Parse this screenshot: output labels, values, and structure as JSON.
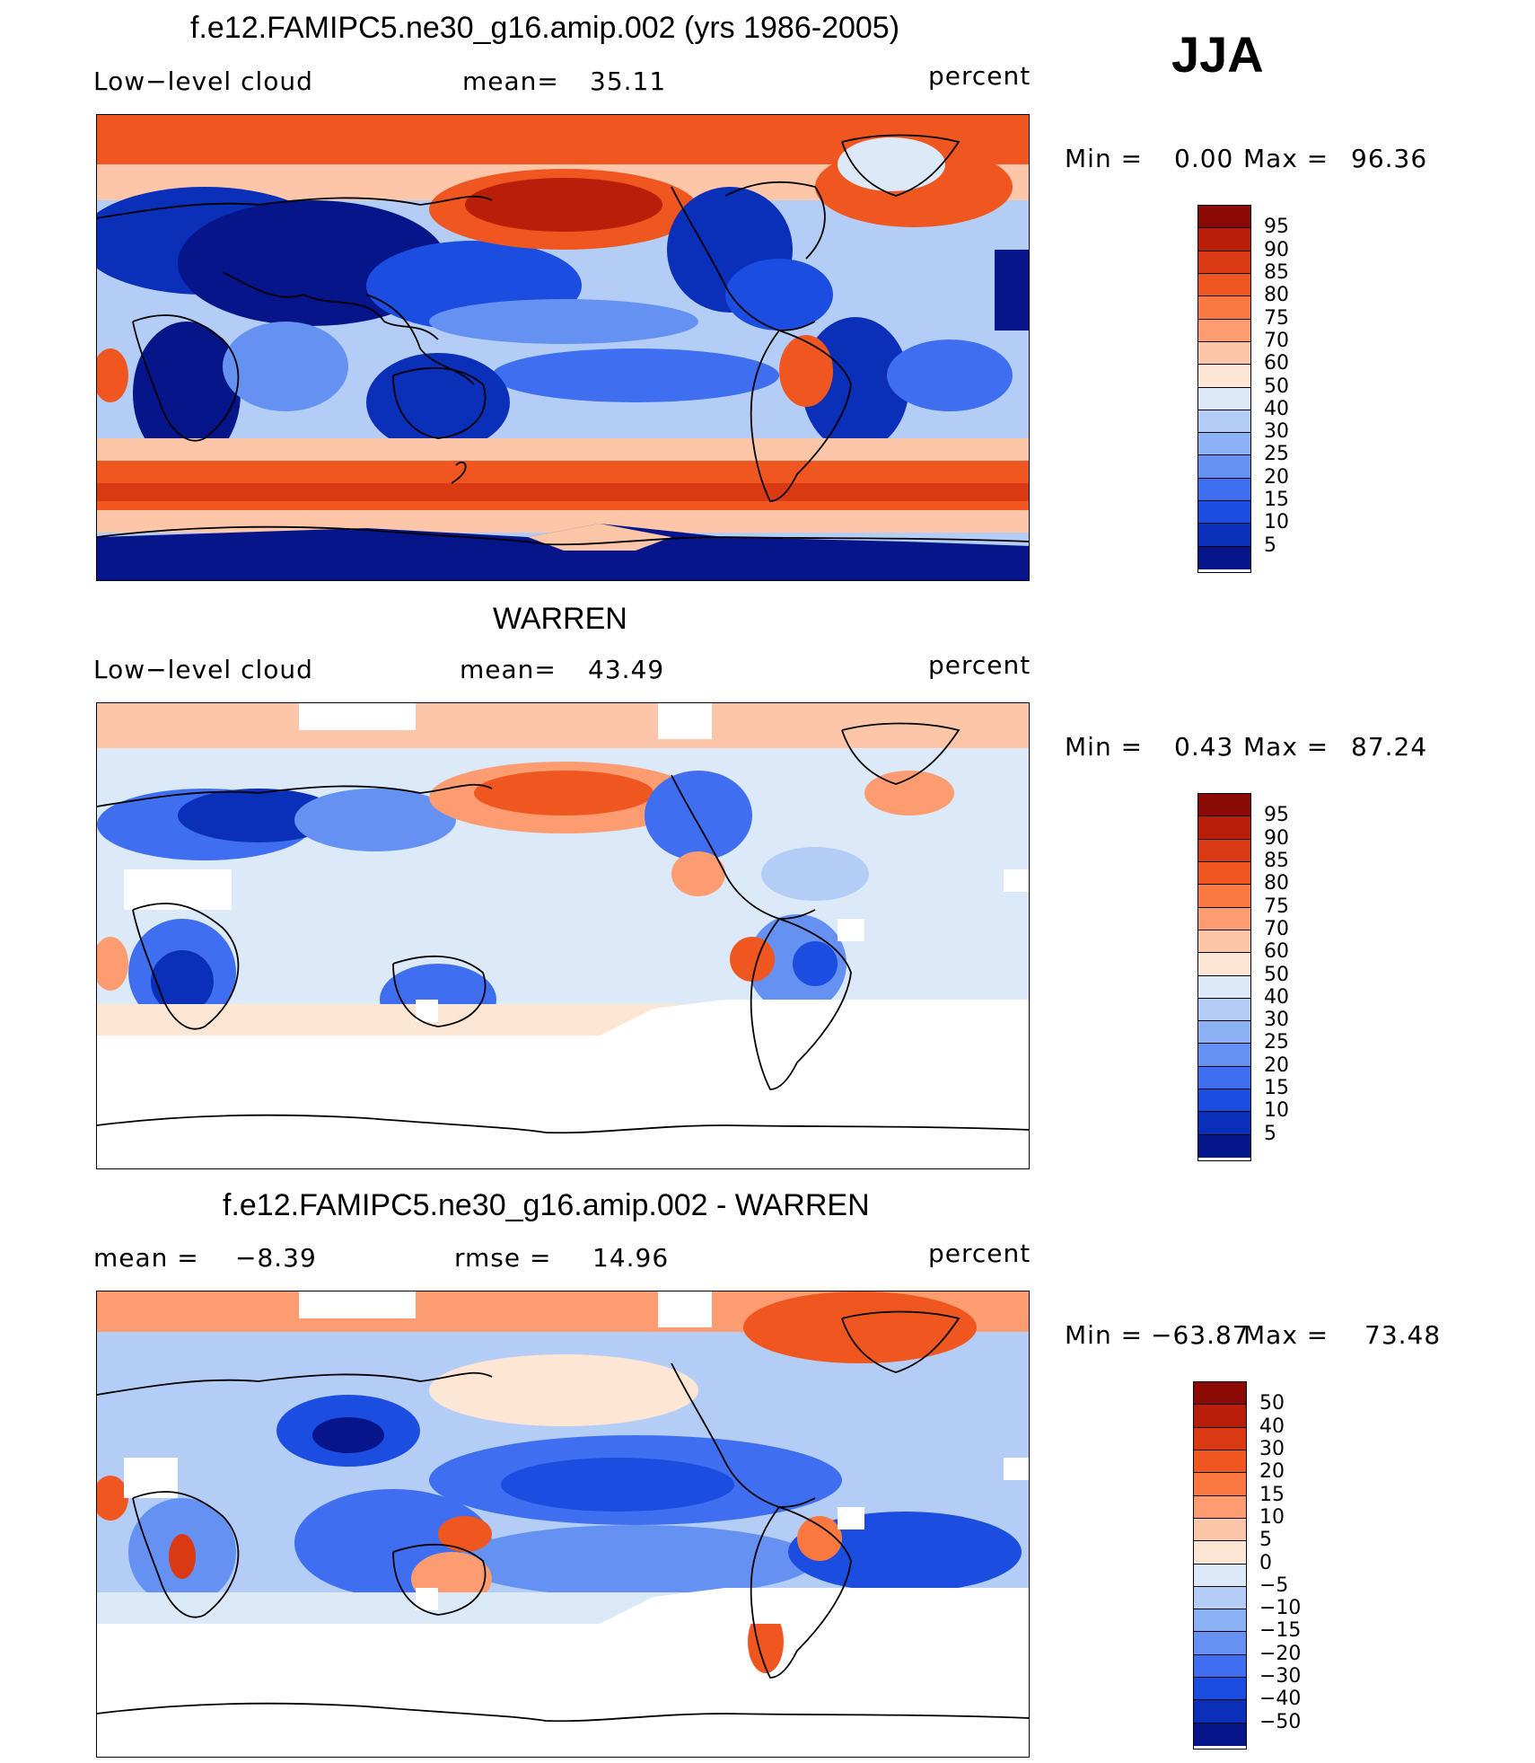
{
  "season": "JJA",
  "units": "percent",
  "panels": [
    {
      "title": "f.e12.FAMIPC5.ne30_g16.amip.002 (yrs 1986-2005)",
      "left_label": "Low−level cloud",
      "center_label": "mean=",
      "center_value": "35.11",
      "right_label": "percent",
      "min_label": "Min =",
      "min_value": "0.00",
      "max_label": "Max =",
      "max_value": "96.36",
      "colorbar_ticks": [
        "95",
        "90",
        "85",
        "80",
        "75",
        "70",
        "60",
        "50",
        "40",
        "30",
        "25",
        "20",
        "15",
        "10",
        "5"
      ],
      "colorbar_colors": [
        "#8b0a05",
        "#b81e0a",
        "#d93a14",
        "#f0561f",
        "#fb7840",
        "#fc9c70",
        "#fdc6a8",
        "#fde6d4",
        "#dbe9f8",
        "#b3cdf7",
        "#8db1f5",
        "#6591f2",
        "#3f6ff0",
        "#1b4ee0",
        "#0a2fb8",
        "#06158a"
      ]
    },
    {
      "title": "WARREN",
      "left_label": "Low−level cloud",
      "center_label": "mean=",
      "center_value": "43.49",
      "right_label": "percent",
      "min_label": "Min =",
      "min_value": "0.43",
      "max_label": "Max =",
      "max_value": "87.24",
      "colorbar_ticks": [
        "95",
        "90",
        "85",
        "80",
        "75",
        "70",
        "60",
        "50",
        "40",
        "30",
        "25",
        "20",
        "15",
        "10",
        "5"
      ],
      "colorbar_colors": [
        "#8b0a05",
        "#b81e0a",
        "#d93a14",
        "#f0561f",
        "#fb7840",
        "#fc9c70",
        "#fdc6a8",
        "#fde6d4",
        "#dbe9f8",
        "#b3cdf7",
        "#8db1f5",
        "#6591f2",
        "#3f6ff0",
        "#1b4ee0",
        "#0a2fb8",
        "#06158a"
      ]
    },
    {
      "title": "f.e12.FAMIPC5.ne30_g16.amip.002 - WARREN",
      "left_label": "mean =",
      "left_value": "−8.39",
      "center_label": "rmse =",
      "center_value": "14.96",
      "right_label": "percent",
      "min_label": "Min =",
      "min_value": "−63.87",
      "max_label": "Max =",
      "max_value": "73.48",
      "colorbar_ticks": [
        "50",
        "40",
        "30",
        "20",
        "15",
        "10",
        "5",
        "0",
        "−5",
        "−10",
        "−15",
        "−20",
        "−30",
        "−40",
        "−50"
      ],
      "colorbar_colors": [
        "#8b0a05",
        "#b81e0a",
        "#d93a14",
        "#f0561f",
        "#fb7840",
        "#fc9c70",
        "#fdc6a8",
        "#fde6d4",
        "#dbe9f8",
        "#b3cdf7",
        "#8db1f5",
        "#6591f2",
        "#3f6ff0",
        "#1b4ee0",
        "#0a2fb8",
        "#06158a"
      ]
    }
  ],
  "colors": {
    "deep_red": "#b81e0a",
    "red": "#f0561f",
    "light_red": "#fdc6a8",
    "pale": "#fde6d4",
    "pale_blue": "#dbe9f8",
    "light_blue": "#b3cdf7",
    "mid_blue": "#6591f2",
    "blue": "#3f6ff0",
    "deep_blue": "#0a2fb8",
    "navy": "#06158a",
    "coast": "#000000",
    "missing": "#ffffff"
  }
}
